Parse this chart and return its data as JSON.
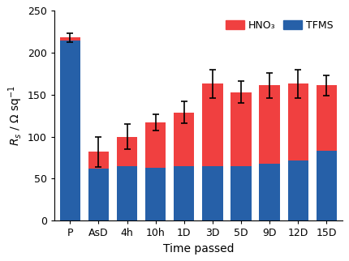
{
  "categories": [
    "P",
    "AsD",
    "4h",
    "10h",
    "1D",
    "3D",
    "5D",
    "9D",
    "12D",
    "15D"
  ],
  "blue_values": [
    215,
    62,
    65,
    63,
    65,
    65,
    65,
    68,
    72,
    83
  ],
  "red_values": [
    3,
    20,
    35,
    54,
    64,
    98,
    88,
    93,
    91,
    78
  ],
  "total_values": [
    218,
    82,
    100,
    117,
    129,
    163,
    153,
    161,
    163,
    161
  ],
  "error_bars": [
    5,
    18,
    15,
    10,
    13,
    17,
    13,
    15,
    17,
    12
  ],
  "blue_color": "#2660a8",
  "red_color": "#f04040",
  "ylabel": "$R_s$ / Ω sq$^{-1}$",
  "xlabel": "Time passed",
  "ylim": [
    0,
    250
  ],
  "yticks": [
    0,
    50,
    100,
    150,
    200,
    250
  ],
  "legend_labels": [
    "HNO₃",
    "TFMS"
  ],
  "legend_colors": [
    "#f04040",
    "#2660a8"
  ],
  "axis_fontsize": 10,
  "tick_fontsize": 9,
  "legend_fontsize": 9,
  "background_color": "#ffffff"
}
